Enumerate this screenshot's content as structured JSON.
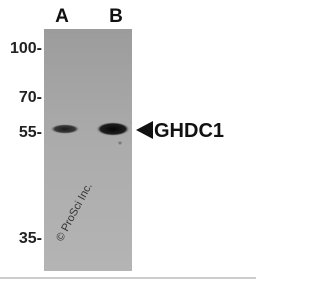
{
  "lanes": [
    "A",
    "B"
  ],
  "markers": [
    "100-",
    "70-",
    "55-",
    "35-"
  ],
  "target": "GHDC1",
  "watermark": "© ProSci Inc."
}
